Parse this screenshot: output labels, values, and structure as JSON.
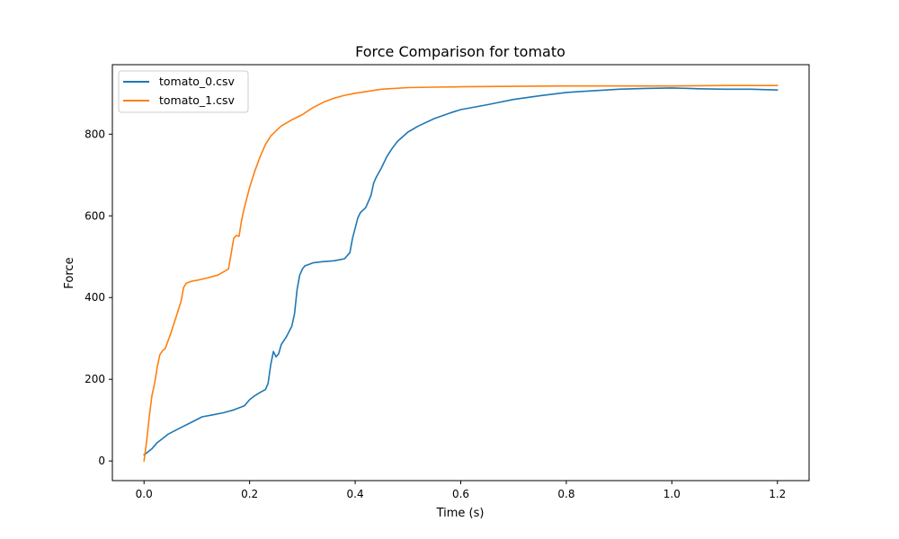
{
  "chart_data": {
    "type": "line",
    "title": "Force Comparison for tomato",
    "xlabel": "Time (s)",
    "ylabel": "Force",
    "xlim": [
      -0.06,
      1.26
    ],
    "ylim": [
      -48,
      970
    ],
    "xticks": [
      0.0,
      0.2,
      0.4,
      0.6,
      0.8,
      1.0,
      1.2
    ],
    "xtick_labels": [
      "0.0",
      "0.2",
      "0.4",
      "0.6",
      "0.8",
      "1.0",
      "1.2"
    ],
    "yticks": [
      0,
      200,
      400,
      600,
      800
    ],
    "ytick_labels": [
      "0",
      "200",
      "400",
      "600",
      "800"
    ],
    "grid": false,
    "legend_position": "top-left",
    "series": [
      {
        "name": "tomato_0.csv",
        "color": "#1f77b4",
        "x": [
          0.0,
          0.005,
          0.015,
          0.025,
          0.035,
          0.045,
          0.055,
          0.07,
          0.09,
          0.11,
          0.13,
          0.15,
          0.17,
          0.18,
          0.19,
          0.2,
          0.21,
          0.22,
          0.23,
          0.235,
          0.24,
          0.245,
          0.25,
          0.255,
          0.26,
          0.27,
          0.28,
          0.285,
          0.29,
          0.295,
          0.3,
          0.305,
          0.31,
          0.32,
          0.34,
          0.36,
          0.38,
          0.39,
          0.395,
          0.4,
          0.405,
          0.41,
          0.42,
          0.43,
          0.435,
          0.44,
          0.45,
          0.46,
          0.47,
          0.48,
          0.5,
          0.52,
          0.55,
          0.58,
          0.6,
          0.65,
          0.7,
          0.75,
          0.8,
          0.85,
          0.9,
          0.95,
          1.0,
          1.05,
          1.1,
          1.15,
          1.2
        ],
        "y": [
          15,
          20,
          30,
          45,
          55,
          65,
          72,
          82,
          95,
          108,
          113,
          118,
          125,
          130,
          135,
          150,
          160,
          168,
          175,
          190,
          235,
          268,
          255,
          262,
          285,
          305,
          330,
          360,
          420,
          455,
          470,
          478,
          480,
          485,
          488,
          490,
          495,
          510,
          545,
          570,
          595,
          608,
          620,
          650,
          680,
          695,
          718,
          745,
          765,
          782,
          805,
          820,
          838,
          852,
          860,
          872,
          885,
          894,
          902,
          906,
          910,
          912,
          913,
          911,
          910,
          910,
          908
        ]
      },
      {
        "name": "tomato_1.csv",
        "color": "#ff7f0e",
        "x": [
          0.0,
          0.005,
          0.01,
          0.015,
          0.02,
          0.025,
          0.03,
          0.035,
          0.04,
          0.05,
          0.06,
          0.07,
          0.075,
          0.08,
          0.09,
          0.1,
          0.12,
          0.14,
          0.16,
          0.17,
          0.175,
          0.18,
          0.185,
          0.19,
          0.2,
          0.21,
          0.22,
          0.23,
          0.24,
          0.25,
          0.26,
          0.28,
          0.3,
          0.32,
          0.34,
          0.36,
          0.38,
          0.4,
          0.45,
          0.5,
          0.55,
          0.6,
          0.7,
          0.8,
          0.9,
          1.0,
          1.1,
          1.2
        ],
        "y": [
          0,
          50,
          110,
          160,
          190,
          230,
          260,
          270,
          275,
          310,
          350,
          390,
          425,
          435,
          440,
          442,
          448,
          455,
          470,
          545,
          552,
          550,
          590,
          620,
          670,
          710,
          745,
          775,
          795,
          808,
          820,
          835,
          848,
          865,
          878,
          888,
          895,
          900,
          910,
          914,
          915,
          916,
          917,
          918,
          918,
          918,
          919,
          919
        ]
      }
    ]
  }
}
